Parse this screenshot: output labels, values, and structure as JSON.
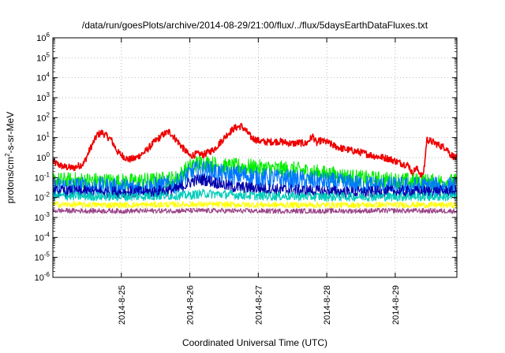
{
  "chart_data": {
    "type": "line",
    "title": "/data/run/goesPlots/archive/2014-08-29/21:00/flux/../flux/5daysEarthDataFluxes.txt",
    "xlabel": "Coordinated Universal Time (UTC)",
    "ylabel": "protons/cm²-s-sr-MeV",
    "ylabel_parts": {
      "pre": "protons/cm",
      "sup": "2",
      "post": "-s-sr-MeV"
    },
    "yscale": "log",
    "ylim": [
      1e-06,
      1000000.0
    ],
    "y_ticks": [
      {
        "base": "10",
        "exp": "-6",
        "value": 1e-06
      },
      {
        "base": "10",
        "exp": "-5",
        "value": 1e-05
      },
      {
        "base": "10",
        "exp": "-4",
        "value": 0.0001
      },
      {
        "base": "10",
        "exp": "-3",
        "value": 0.001
      },
      {
        "base": "10",
        "exp": "-2",
        "value": 0.01
      },
      {
        "base": "10",
        "exp": "-1",
        "value": 0.1
      },
      {
        "base": "10",
        "exp": "0",
        "value": 1
      },
      {
        "base": "10",
        "exp": "1",
        "value": 10
      },
      {
        "base": "10",
        "exp": "2",
        "value": 100
      },
      {
        "base": "10",
        "exp": "3",
        "value": 1000
      },
      {
        "base": "10",
        "exp": "4",
        "value": 10000
      },
      {
        "base": "10",
        "exp": "5",
        "value": 100000
      },
      {
        "base": "10",
        "exp": "6",
        "value": 1000000
      }
    ],
    "xlim": [
      24.0,
      29.9
    ],
    "x_ticks": [
      {
        "label": "2014-8-25",
        "value": 25
      },
      {
        "label": "2014-8-26",
        "value": 26
      },
      {
        "label": "2014-8-27",
        "value": 27
      },
      {
        "label": "2014-8-28",
        "value": 28
      },
      {
        "label": "2014-8-29",
        "value": 29
      }
    ],
    "grid": true,
    "series": [
      {
        "color": "#ee0000",
        "noise": 0.35,
        "points": [
          [
            24.0,
            0.6
          ],
          [
            24.15,
            0.35
          ],
          [
            24.3,
            0.3
          ],
          [
            24.45,
            0.5
          ],
          [
            24.55,
            3
          ],
          [
            24.65,
            14
          ],
          [
            24.72,
            18
          ],
          [
            24.85,
            8
          ],
          [
            24.95,
            1.8
          ],
          [
            25.1,
            0.8
          ],
          [
            25.2,
            0.9
          ],
          [
            25.35,
            2
          ],
          [
            25.5,
            7
          ],
          [
            25.62,
            15
          ],
          [
            25.7,
            20
          ],
          [
            25.8,
            8
          ],
          [
            25.9,
            3
          ],
          [
            26.0,
            1.2
          ],
          [
            26.1,
            1.5
          ],
          [
            26.2,
            1.4
          ],
          [
            26.35,
            2.5
          ],
          [
            26.45,
            6
          ],
          [
            26.55,
            15
          ],
          [
            26.65,
            30
          ],
          [
            26.75,
            38
          ],
          [
            26.82,
            22
          ],
          [
            26.9,
            10
          ],
          [
            27.0,
            7
          ],
          [
            27.1,
            6
          ],
          [
            27.3,
            6.5
          ],
          [
            27.5,
            5
          ],
          [
            27.6,
            5.5
          ],
          [
            27.7,
            5
          ],
          [
            27.75,
            8
          ],
          [
            27.8,
            12
          ],
          [
            27.85,
            5
          ],
          [
            27.9,
            7
          ],
          [
            28.0,
            6
          ],
          [
            28.1,
            4
          ],
          [
            28.2,
            3
          ],
          [
            28.3,
            2.5
          ],
          [
            28.5,
            1.8
          ],
          [
            28.7,
            1.2
          ],
          [
            28.9,
            0.9
          ],
          [
            29.1,
            0.5
          ],
          [
            29.2,
            0.4
          ],
          [
            29.25,
            0.15
          ],
          [
            29.3,
            0.3
          ],
          [
            29.35,
            0.2
          ],
          [
            29.4,
            0.1
          ],
          [
            29.43,
            0.5
          ],
          [
            29.46,
            8
          ],
          [
            29.55,
            6
          ],
          [
            29.65,
            4
          ],
          [
            29.75,
            3
          ],
          [
            29.8,
            1.5
          ],
          [
            29.9,
            0.9
          ]
        ]
      },
      {
        "color": "#00ee00",
        "noise": 0.85,
        "points": [
          [
            24.0,
            0.07
          ],
          [
            24.5,
            0.07
          ],
          [
            25.0,
            0.06
          ],
          [
            25.5,
            0.07
          ],
          [
            25.8,
            0.09
          ],
          [
            25.95,
            0.25
          ],
          [
            26.05,
            0.45
          ],
          [
            26.15,
            0.55
          ],
          [
            26.3,
            0.5
          ],
          [
            26.5,
            0.35
          ],
          [
            26.8,
            0.35
          ],
          [
            27.0,
            0.3
          ],
          [
            27.5,
            0.25
          ],
          [
            28.0,
            0.15
          ],
          [
            28.5,
            0.09
          ],
          [
            29.0,
            0.07
          ],
          [
            29.5,
            0.06
          ],
          [
            29.9,
            0.06
          ]
        ]
      },
      {
        "color": "#0077ff",
        "noise": 1.0,
        "points": [
          [
            24.0,
            0.035
          ],
          [
            24.5,
            0.035
          ],
          [
            25.0,
            0.03
          ],
          [
            25.5,
            0.035
          ],
          [
            25.8,
            0.045
          ],
          [
            25.95,
            0.12
          ],
          [
            26.05,
            0.2
          ],
          [
            26.15,
            0.25
          ],
          [
            26.3,
            0.22
          ],
          [
            26.5,
            0.14
          ],
          [
            26.8,
            0.13
          ],
          [
            27.0,
            0.1
          ],
          [
            27.5,
            0.08
          ],
          [
            28.0,
            0.06
          ],
          [
            28.5,
            0.045
          ],
          [
            29.0,
            0.035
          ],
          [
            29.5,
            0.035
          ],
          [
            29.9,
            0.035
          ]
        ]
      },
      {
        "color": "#0000aa",
        "noise": 0.6,
        "points": [
          [
            24.0,
            0.02
          ],
          [
            24.5,
            0.02
          ],
          [
            25.0,
            0.018
          ],
          [
            25.5,
            0.02
          ],
          [
            25.8,
            0.025
          ],
          [
            25.95,
            0.045
          ],
          [
            26.05,
            0.07
          ],
          [
            26.2,
            0.08
          ],
          [
            26.35,
            0.06
          ],
          [
            26.6,
            0.035
          ],
          [
            26.9,
            0.03
          ],
          [
            27.3,
            0.025
          ],
          [
            28.0,
            0.02
          ],
          [
            28.5,
            0.018
          ],
          [
            29.0,
            0.02
          ],
          [
            29.9,
            0.02
          ]
        ]
      },
      {
        "color": "#00ccbb",
        "noise": 0.45,
        "points": [
          [
            24.0,
            0.012
          ],
          [
            25.0,
            0.011
          ],
          [
            26.0,
            0.013
          ],
          [
            26.2,
            0.016
          ],
          [
            27.0,
            0.012
          ],
          [
            28.0,
            0.011
          ],
          [
            29.0,
            0.011
          ],
          [
            29.9,
            0.011
          ]
        ]
      },
      {
        "color": "#ffff00",
        "noise": 0.3,
        "points": [
          [
            24.0,
            0.0045
          ],
          [
            25.0,
            0.0042
          ],
          [
            26.0,
            0.0045
          ],
          [
            27.0,
            0.0043
          ],
          [
            28.0,
            0.0042
          ],
          [
            29.0,
            0.0043
          ],
          [
            29.9,
            0.0042
          ]
        ]
      },
      {
        "color": "#994488",
        "noise": 0.25,
        "points": [
          [
            24.0,
            0.0022
          ],
          [
            25.0,
            0.0021
          ],
          [
            26.0,
            0.0022
          ],
          [
            27.0,
            0.0021
          ],
          [
            28.0,
            0.0021
          ],
          [
            29.0,
            0.0022
          ],
          [
            29.9,
            0.0021
          ]
        ]
      }
    ]
  }
}
